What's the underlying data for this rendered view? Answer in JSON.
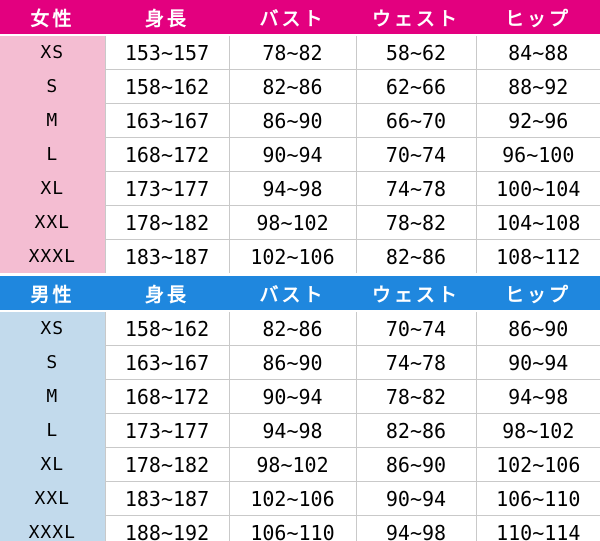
{
  "colors": {
    "women_header_bg": "#E3007F",
    "women_size_bg": "#F4BDD2",
    "men_header_bg": "#1F87DE",
    "men_size_bg": "#C2DAEC",
    "grid_line": "#C9C9C9",
    "header_text": "#FFFFFF",
    "cell_text": "#000000",
    "cell_bg": "#FFFFFF"
  },
  "chart_data": [
    {
      "type": "table",
      "title": "女性",
      "columns": [
        "女性",
        "身長",
        "バスト",
        "ウェスト",
        "ヒップ"
      ],
      "rows": [
        [
          "XS",
          "153~157",
          "78~82",
          "58~62",
          "84~88"
        ],
        [
          "S",
          "158~162",
          "82~86",
          "62~66",
          "88~92"
        ],
        [
          "M",
          "163~167",
          "86~90",
          "66~70",
          "92~96"
        ],
        [
          "L",
          "168~172",
          "90~94",
          "70~74",
          "96~100"
        ],
        [
          "XL",
          "173~177",
          "94~98",
          "74~78",
          "100~104"
        ],
        [
          "XXL",
          "178~182",
          "98~102",
          "78~82",
          "104~108"
        ],
        [
          "XXXL",
          "183~187",
          "102~106",
          "82~86",
          "108~112"
        ]
      ]
    },
    {
      "type": "table",
      "title": "男性",
      "columns": [
        "男性",
        "身長",
        "バスト",
        "ウェスト",
        "ヒップ"
      ],
      "rows": [
        [
          "XS",
          "158~162",
          "82~86",
          "70~74",
          "86~90"
        ],
        [
          "S",
          "163~167",
          "86~90",
          "74~78",
          "90~94"
        ],
        [
          "M",
          "168~172",
          "90~94",
          "78~82",
          "94~98"
        ],
        [
          "L",
          "173~177",
          "94~98",
          "82~86",
          "98~102"
        ],
        [
          "XL",
          "178~182",
          "98~102",
          "86~90",
          "102~106"
        ],
        [
          "XXL",
          "183~187",
          "102~106",
          "90~94",
          "106~110"
        ],
        [
          "XXXL",
          "188~192",
          "106~110",
          "94~98",
          "110~114"
        ]
      ]
    }
  ]
}
